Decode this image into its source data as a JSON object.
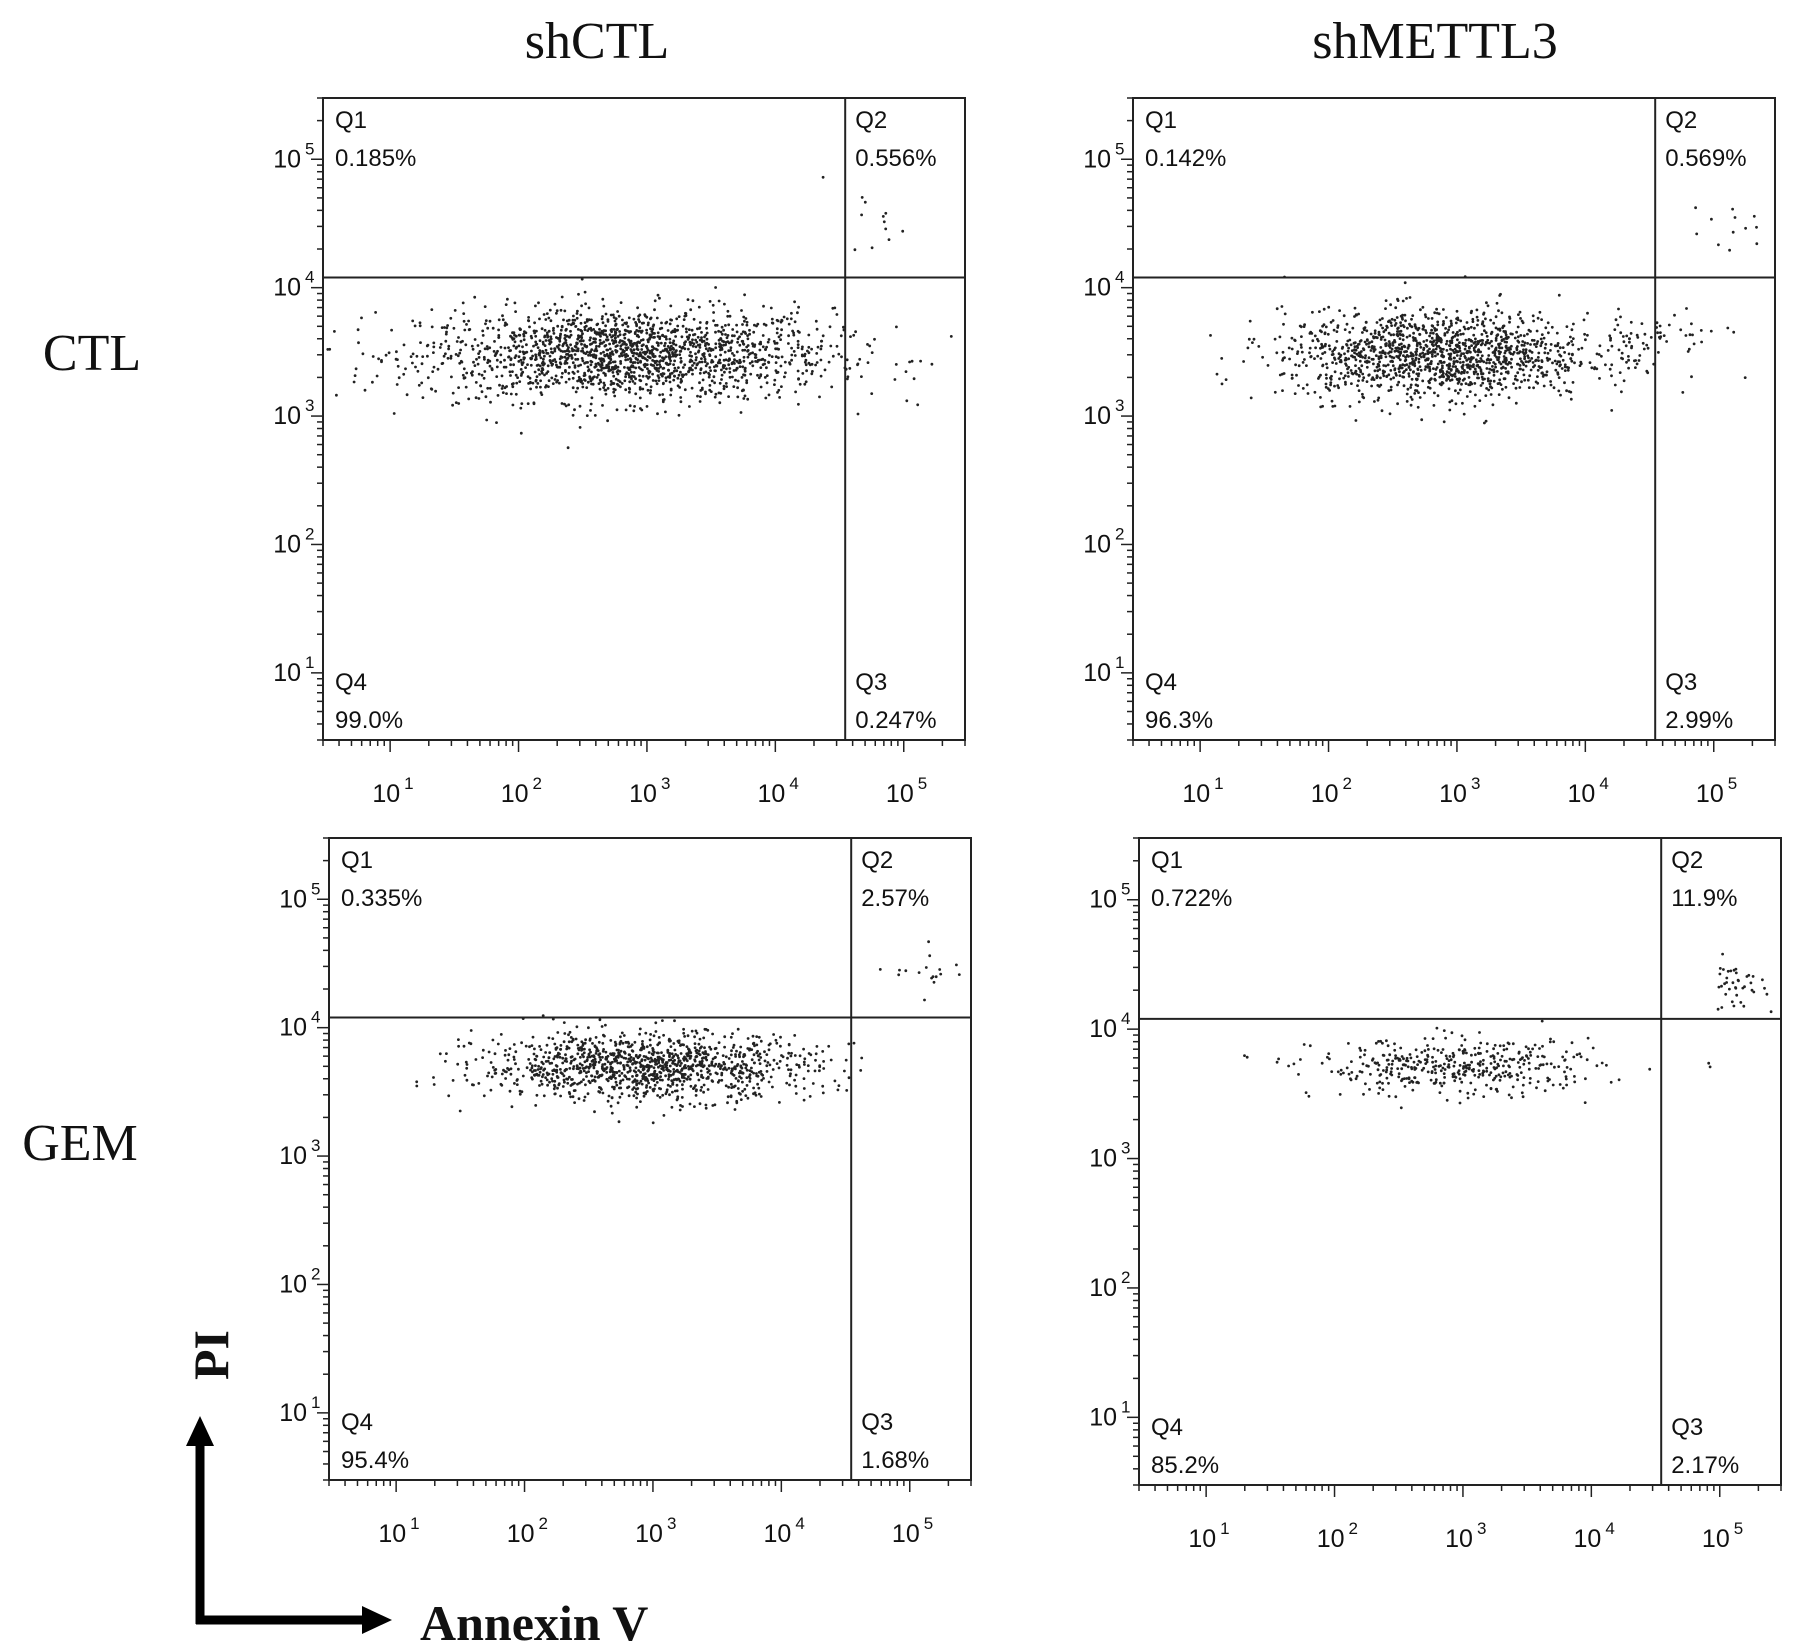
{
  "figure": {
    "column_titles": [
      "shCTL",
      "shMETTL3"
    ],
    "row_labels": [
      "CTL",
      "GEM"
    ],
    "y_axis_title": "PI",
    "x_axis_title": "Annexin V"
  },
  "chart_data": [
    {
      "type": "scatter",
      "column": "shCTL",
      "row": "CTL",
      "xlabel": "Annexin V",
      "ylabel": "PI",
      "x_scale": "log",
      "y_scale": "log",
      "xlim": [
        3,
        300000
      ],
      "ylim": [
        3,
        300000
      ],
      "x_ticks": [
        "10",
        "10",
        "10",
        "10",
        "10"
      ],
      "x_tick_exponents": [
        "1",
        "2",
        "3",
        "4",
        "5"
      ],
      "y_ticks": [
        "10",
        "10",
        "10",
        "10",
        "10"
      ],
      "y_tick_exponents": [
        "1",
        "2",
        "3",
        "4",
        "5"
      ],
      "gate": {
        "x": 35000,
        "y": 12000
      },
      "quadrants": [
        {
          "name": "Q1",
          "value": "0.185%"
        },
        {
          "name": "Q2",
          "value": "0.556%"
        },
        {
          "name": "Q3",
          "value": "0.247%"
        },
        {
          "name": "Q4",
          "value": "99.0%"
        }
      ],
      "clusters": [
        {
          "x_center": 700,
          "x_spread_decades": 0.8,
          "y_center": 3000,
          "y_spread_decades": 0.18,
          "count": 1800
        },
        {
          "x_center": 60000,
          "x_spread_decades": 0.12,
          "y_center": 35000,
          "y_spread_decades": 0.15,
          "count": 12
        }
      ]
    },
    {
      "type": "scatter",
      "column": "shMETTL3",
      "row": "CTL",
      "xlabel": "Annexin V",
      "ylabel": "PI",
      "x_scale": "log",
      "y_scale": "log",
      "xlim": [
        3,
        300000
      ],
      "ylim": [
        3,
        300000
      ],
      "x_ticks": [
        "10",
        "10",
        "10",
        "10",
        "10"
      ],
      "x_tick_exponents": [
        "1",
        "2",
        "3",
        "4",
        "5"
      ],
      "y_ticks": [
        "10",
        "10",
        "10",
        "10",
        "10"
      ],
      "y_tick_exponents": [
        "1",
        "2",
        "3",
        "4",
        "5"
      ],
      "gate": {
        "x": 35000,
        "y": 12000
      },
      "quadrants": [
        {
          "name": "Q1",
          "value": "0.142%"
        },
        {
          "name": "Q2",
          "value": "0.569%"
        },
        {
          "name": "Q3",
          "value": "2.99%"
        },
        {
          "name": "Q4",
          "value": "96.3%"
        }
      ],
      "clusters": [
        {
          "x_center": 700,
          "x_spread_decades": 0.6,
          "y_center": 3000,
          "y_spread_decades": 0.17,
          "count": 1400
        },
        {
          "x_center": 30000,
          "x_spread_decades": 0.3,
          "y_center": 4000,
          "y_spread_decades": 0.1,
          "count": 60
        },
        {
          "x_center": 120000,
          "x_spread_decades": 0.2,
          "y_center": 30000,
          "y_spread_decades": 0.12,
          "count": 12
        }
      ]
    },
    {
      "type": "scatter",
      "column": "shCTL",
      "row": "GEM",
      "xlabel": "Annexin V",
      "ylabel": "PI",
      "x_scale": "log",
      "y_scale": "log",
      "xlim": [
        3,
        300000
      ],
      "ylim": [
        3,
        300000
      ],
      "x_ticks": [
        "10",
        "10",
        "10",
        "10",
        "10"
      ],
      "x_tick_exponents": [
        "1",
        "2",
        "3",
        "4",
        "5"
      ],
      "y_ticks": [
        "10",
        "10",
        "10",
        "10",
        "10"
      ],
      "y_tick_exponents": [
        "1",
        "2",
        "3",
        "4",
        "5"
      ],
      "gate": {
        "x": 35000,
        "y": 12000
      },
      "quadrants": [
        {
          "name": "Q1",
          "value": "0.335%"
        },
        {
          "name": "Q2",
          "value": "2.57%"
        },
        {
          "name": "Q3",
          "value": "1.68%"
        },
        {
          "name": "Q4",
          "value": "95.4%"
        }
      ],
      "clusters": [
        {
          "x_center": 900,
          "x_spread_decades": 0.65,
          "y_center": 5000,
          "y_spread_decades": 0.13,
          "count": 1200
        },
        {
          "x_center": 150000,
          "x_spread_decades": 0.15,
          "y_center": 28000,
          "y_spread_decades": 0.1,
          "count": 18
        }
      ]
    },
    {
      "type": "scatter",
      "column": "shMETTL3",
      "row": "GEM",
      "xlabel": "Annexin V",
      "ylabel": "PI",
      "x_scale": "log",
      "y_scale": "log",
      "xlim": [
        3,
        300000
      ],
      "ylim": [
        3,
        300000
      ],
      "x_ticks": [
        "10",
        "10",
        "10",
        "10",
        "10"
      ],
      "x_tick_exponents": [
        "1",
        "2",
        "3",
        "4",
        "5"
      ],
      "y_ticks": [
        "10",
        "10",
        "10",
        "10",
        "10"
      ],
      "y_tick_exponents": [
        "1",
        "2",
        "3",
        "4",
        "5"
      ],
      "gate": {
        "x": 35000,
        "y": 12000
      },
      "quadrants": [
        {
          "name": "Q1",
          "value": "0.722%"
        },
        {
          "name": "Q2",
          "value": "11.9%"
        },
        {
          "name": "Q3",
          "value": "2.17%"
        },
        {
          "name": "Q4",
          "value": "85.2%"
        }
      ],
      "clusters": [
        {
          "x_center": 900,
          "x_spread_decades": 0.55,
          "y_center": 5000,
          "y_spread_decades": 0.11,
          "count": 420
        },
        {
          "x_center": 130000,
          "x_spread_decades": 0.12,
          "y_center": 22000,
          "y_spread_decades": 0.1,
          "count": 40
        }
      ]
    }
  ]
}
